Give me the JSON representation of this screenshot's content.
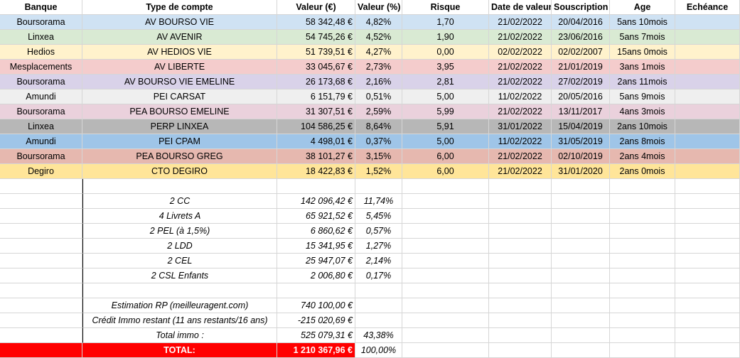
{
  "columns": [
    "Banque",
    "Type de compte",
    "Valeur (€)",
    "Valeur (%)",
    "Risque",
    "Date de valeur",
    "Souscription",
    "Age",
    "Echéance"
  ],
  "accounts": [
    {
      "banque": "Boursorama",
      "type": "AV BOURSO VIE",
      "valeur": "58 342,48 €",
      "pct": "4,82%",
      "risque": "1,70",
      "date_valeur": "21/02/2022",
      "souscription": "20/04/2016",
      "age": "5ans 10mois",
      "echeance": "",
      "color": "#cfe2f3"
    },
    {
      "banque": "Linxea",
      "type": "AV AVENIR",
      "valeur": "54 745,26 €",
      "pct": "4,52%",
      "risque": "1,90",
      "date_valeur": "21/02/2022",
      "souscription": "23/06/2016",
      "age": "5ans 7mois",
      "echeance": "",
      "color": "#d9ead3"
    },
    {
      "banque": "Hedios",
      "type": "AV HEDIOS VIE",
      "valeur": "51 739,51 €",
      "pct": "4,27%",
      "risque": "0,00",
      "date_valeur": "02/02/2022",
      "souscription": "02/02/2007",
      "age": "15ans 0mois",
      "echeance": "",
      "color": "#fff2cc"
    },
    {
      "banque": "Mesplacements",
      "type": "AV LIBERTE",
      "valeur": "33 045,67 €",
      "pct": "2,73%",
      "risque": "3,95",
      "date_valeur": "21/02/2022",
      "souscription": "21/01/2019",
      "age": "3ans 1mois",
      "echeance": "",
      "color": "#f4cccc"
    },
    {
      "banque": "Boursorama",
      "type": "AV BOURSO VIE EMELINE",
      "valeur": "26 173,68 €",
      "pct": "2,16%",
      "risque": "2,81",
      "date_valeur": "21/02/2022",
      "souscription": "27/02/2019",
      "age": "2ans 11mois",
      "echeance": "",
      "color": "#d9d2e9"
    },
    {
      "banque": "Amundi",
      "type": "PEI CARSAT",
      "valeur": "6 151,79 €",
      "pct": "0,51%",
      "risque": "5,00",
      "date_valeur": "11/02/2022",
      "souscription": "20/05/2016",
      "age": "5ans 9mois",
      "echeance": "",
      "color": "#efefef"
    },
    {
      "banque": "Boursorama",
      "type": "PEA BOURSO EMELINE",
      "valeur": "31 307,51 €",
      "pct": "2,59%",
      "risque": "5,99",
      "date_valeur": "21/02/2022",
      "souscription": "13/11/2017",
      "age": "4ans 3mois",
      "echeance": "",
      "color": "#ead1dc"
    },
    {
      "banque": "Linxea",
      "type": "PERP LINXEA",
      "valeur": "104 586,25 €",
      "pct": "8,64%",
      "risque": "5,91",
      "date_valeur": "31/01/2022",
      "souscription": "15/04/2019",
      "age": "2ans 10mois",
      "echeance": "",
      "color": "#b7b7b7"
    },
    {
      "banque": "Amundi",
      "type": "PEI CPAM",
      "valeur": "4 498,01 €",
      "pct": "0,37%",
      "risque": "5,00",
      "date_valeur": "11/02/2022",
      "souscription": "31/05/2019",
      "age": "2ans 8mois",
      "echeance": "",
      "color": "#9fc5e8"
    },
    {
      "banque": "Boursorama",
      "type": "PEA BOURSO GREG",
      "valeur": "38 101,27 €",
      "pct": "3,15%",
      "risque": "6,00",
      "date_valeur": "21/02/2022",
      "souscription": "02/10/2019",
      "age": "2ans 4mois",
      "echeance": "",
      "color": "#e6b8af"
    },
    {
      "banque": "Degiro",
      "type": "CTO DEGIRO",
      "valeur": "18 422,83 €",
      "pct": "1,52%",
      "risque": "6,00",
      "date_valeur": "21/02/2022",
      "souscription": "31/01/2020",
      "age": "2ans 0mois",
      "echeance": "",
      "color": "#ffe599"
    }
  ],
  "savings": [
    {
      "label": "2 CC",
      "valeur": "142 096,42 €",
      "pct": "11,74%"
    },
    {
      "label": "4 Livrets A",
      "valeur": "65 921,52 €",
      "pct": "5,45%"
    },
    {
      "label": "2 PEL (à 1,5%)",
      "valeur": "6 860,62 €",
      "pct": "0,57%"
    },
    {
      "label": "2 LDD",
      "valeur": "15 341,95 €",
      "pct": "1,27%"
    },
    {
      "label": "2 CEL",
      "valeur": "25 947,07 €",
      "pct": "2,14%"
    },
    {
      "label": "2 CSL Enfants",
      "valeur": "2 006,80 €",
      "pct": "0,17%"
    }
  ],
  "immo": [
    {
      "label": "Estimation RP (meilleuragent.com)",
      "valeur": "740 100,00 €",
      "pct": ""
    },
    {
      "label": "Crédit Immo restant (11 ans restants/16 ans)",
      "valeur": "-215 020,69 €",
      "pct": ""
    },
    {
      "label": "Total immo :",
      "valeur": "525 079,31 €",
      "pct": "43,38%"
    }
  ],
  "total": {
    "label": "TOTAL:",
    "valeur": "1 210 367,96 €",
    "pct": "100,00%"
  },
  "colors": {
    "total_bg": "#ff0000",
    "grid": "#d6d6d6"
  }
}
